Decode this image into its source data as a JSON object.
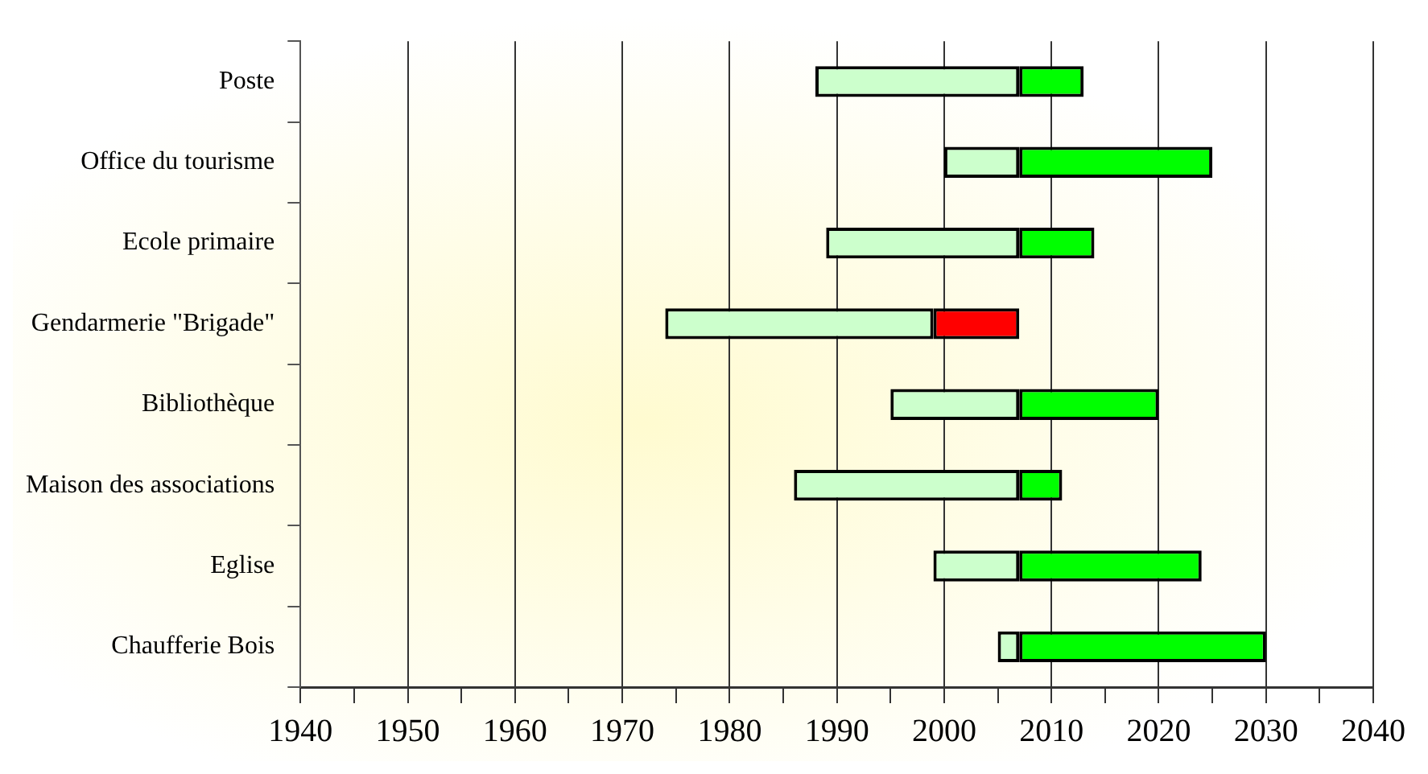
{
  "chart_data": {
    "type": "bar",
    "orientation": "horizontal",
    "categories": [
      "Poste",
      "Office du tourisme",
      "Ecole primaire",
      "Gendarmerie \"Brigade\"",
      "Bibliothèque",
      "Maison des associations",
      "Eglise",
      "Chaufferie Bois"
    ],
    "series": [
      {
        "color": "#ccffcc",
        "base": [
          1988,
          2000,
          1989,
          1974,
          1995,
          1986,
          1999,
          2005
        ],
        "values": [
          19,
          7,
          18,
          25,
          12,
          21,
          8,
          2
        ]
      },
      {
        "base": [
          2007,
          2007,
          2007,
          1999,
          2007,
          2007,
          2007,
          2007
        ],
        "colors": [
          "#00ff00",
          "#00ff00",
          "#00ff00",
          "#ff0000",
          "#00ff00",
          "#00ff00",
          "#00ff00",
          "#00ff00"
        ],
        "values": [
          6,
          18,
          7,
          8,
          13,
          4,
          17,
          23
        ]
      }
    ],
    "xlim": [
      1940,
      2040
    ],
    "xticks": [
      1940,
      {
        "value": 1945,
        "label": null
      },
      1950,
      {
        "value": 1955,
        "label": null
      },
      1960,
      {
        "value": 1965,
        "label": null
      },
      1970,
      {
        "value": 1975,
        "label": null
      },
      1980,
      {
        "value": 1985,
        "label": null
      },
      1990,
      {
        "value": 1995,
        "label": null
      },
      2000,
      {
        "value": 2005,
        "label": null
      },
      2010,
      {
        "value": 2015,
        "label": null
      },
      2020,
      {
        "value": 2025,
        "label": null
      },
      2030,
      {
        "value": 2035,
        "label": null
      },
      2040
    ],
    "grid": "x",
    "legend": false
  }
}
